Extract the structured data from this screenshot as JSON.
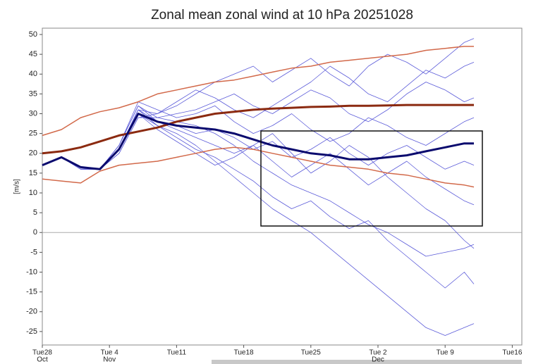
{
  "chart_data": {
    "type": "line",
    "title": "Zonal mean zonal wind at 10 hPa 20251028",
    "y_label": "[m/s]",
    "x": [
      0,
      2,
      4,
      6,
      8,
      10,
      12,
      14,
      16,
      18,
      20,
      22,
      24,
      26,
      28,
      30,
      32,
      34,
      36,
      38,
      40,
      42,
      44,
      45
    ],
    "xlim": [
      0,
      50
    ],
    "xticks": [
      {
        "value": 0,
        "label": "Tue28",
        "sublabel": "Oct"
      },
      {
        "value": 7,
        "label": "Tue 4",
        "sublabel": "Nov"
      },
      {
        "value": 14,
        "label": "Tue11"
      },
      {
        "value": 21,
        "label": "Tue18"
      },
      {
        "value": 28,
        "label": "Tue25"
      },
      {
        "value": 35,
        "label": "Tue 2",
        "sublabel": "Dec"
      },
      {
        "value": 42,
        "label": "Tue 9"
      },
      {
        "value": 49,
        "label": "Tue16"
      }
    ],
    "ylim": [
      -28.4,
      51.6
    ],
    "yticks": [
      -25,
      -20,
      -15,
      -10,
      -5,
      0,
      5,
      10,
      15,
      20,
      25,
      30,
      35,
      40,
      45,
      50
    ],
    "hline": 0,
    "grid": false,
    "series": [
      {
        "color": "#5b5bd9",
        "line_width": 0.8,
        "values": [
          17,
          19,
          16,
          16,
          21,
          31,
          30,
          32,
          35,
          38,
          40,
          42,
          38,
          41,
          44,
          40,
          37,
          42,
          45,
          43,
          40,
          44,
          48,
          49
        ]
      },
      {
        "color": "#5b5bd9",
        "line_width": 0.8,
        "values": [
          17,
          19,
          16.5,
          16,
          22,
          32,
          29,
          28,
          27,
          25,
          22,
          18,
          15,
          12,
          10,
          8,
          5,
          2,
          0,
          -3,
          -6,
          -5,
          -4,
          -3
        ]
      },
      {
        "color": "#5b5bd9",
        "line_width": 0.8,
        "values": [
          17,
          19,
          16,
          16,
          21,
          30,
          27,
          25,
          22,
          18,
          14,
          10,
          6,
          3,
          0,
          -4,
          -8,
          -12,
          -16,
          -20,
          -24,
          -26,
          -24,
          -23
        ]
      },
      {
        "color": "#5b5bd9",
        "line_width": 0.8,
        "values": [
          17,
          19,
          16.5,
          16,
          20,
          29,
          29,
          30,
          31,
          33,
          35,
          32,
          30,
          33,
          36,
          34,
          30,
          28,
          31,
          35,
          38,
          36,
          33,
          34
        ]
      },
      {
        "color": "#5b5bd9",
        "line_width": 0.8,
        "values": [
          17,
          19,
          16,
          16,
          21,
          31,
          28,
          26,
          24,
          22,
          20,
          22,
          25,
          20,
          15,
          18,
          22,
          19,
          14,
          10,
          6,
          3,
          -2,
          -4
        ]
      },
      {
        "color": "#5b5bd9",
        "line_width": 0.8,
        "values": [
          17,
          19,
          16.5,
          16,
          22,
          33,
          31,
          29,
          30,
          32,
          28,
          25,
          27,
          30,
          26,
          23,
          25,
          29,
          27,
          24,
          22,
          25,
          28,
          29
        ]
      },
      {
        "color": "#5b5bd9",
        "line_width": 0.8,
        "values": [
          17,
          19,
          16,
          16,
          21,
          30,
          26,
          23,
          20,
          17,
          19,
          22,
          18,
          14,
          17,
          20,
          16,
          12,
          15,
          18,
          14,
          11,
          8,
          7
        ]
      },
      {
        "color": "#5b5bd9",
        "line_width": 0.8,
        "values": [
          17,
          19,
          16.5,
          16,
          20,
          29,
          30,
          33,
          36,
          34,
          31,
          29,
          32,
          35,
          38,
          42,
          39,
          35,
          33,
          37,
          41,
          39,
          42,
          43
        ]
      },
      {
        "color": "#5b5bd9",
        "line_width": 0.8,
        "values": [
          17,
          19,
          16,
          16,
          21,
          31,
          27,
          24,
          21,
          19,
          16,
          13,
          9,
          6,
          8,
          4,
          1,
          3,
          -2,
          -6,
          -10,
          -14,
          -10,
          -13
        ]
      },
      {
        "color": "#5b5bd9",
        "line_width": 0.8,
        "values": [
          17,
          19,
          16.5,
          16,
          22,
          32,
          28,
          27,
          25,
          26,
          24,
          21,
          23,
          19,
          21,
          24,
          20,
          17,
          20,
          22,
          19,
          16,
          18,
          17
        ]
      },
      {
        "color": "#d2694a",
        "line_width": 1.5,
        "values": [
          24.5,
          26,
          29,
          30.5,
          31.5,
          33,
          35,
          36,
          37,
          38,
          38.5,
          39.5,
          40.5,
          41.5,
          42,
          43,
          43.5,
          44,
          44.5,
          45,
          46,
          46.5,
          47,
          47
        ]
      },
      {
        "color": "#d2694a",
        "line_width": 1.5,
        "values": [
          13.5,
          13,
          12.5,
          15.5,
          17,
          17.5,
          18,
          19,
          20,
          21,
          21.5,
          21,
          20,
          19,
          18,
          17,
          16.5,
          16,
          15,
          14.5,
          13.5,
          12.5,
          12,
          11.5
        ]
      },
      {
        "color": "#8b2a10",
        "line_width": 3,
        "values": [
          20,
          20.5,
          21.5,
          23,
          24.5,
          25.5,
          26.5,
          28,
          29,
          30,
          30.5,
          31,
          31.3,
          31.5,
          31.7,
          31.8,
          32,
          32,
          32.1,
          32.2,
          32.2,
          32.2,
          32.2,
          32.2
        ]
      },
      {
        "color": "#0a0a6e",
        "line_width": 3,
        "values": [
          17,
          19,
          16.5,
          16,
          21,
          30,
          28,
          27,
          26.5,
          26,
          25,
          23.5,
          22,
          21,
          20,
          19.5,
          18.5,
          18.5,
          19,
          19.5,
          20.5,
          21.5,
          22.5,
          22.5
        ]
      }
    ]
  }
}
